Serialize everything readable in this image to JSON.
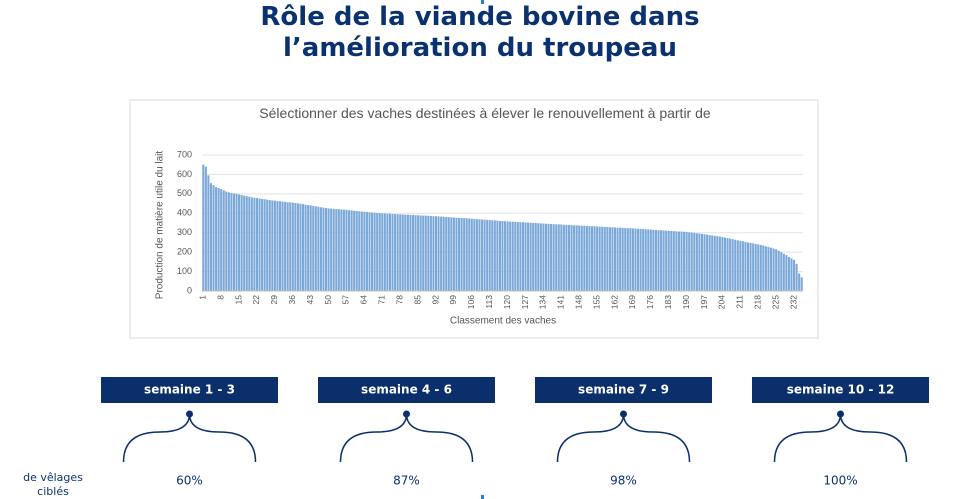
{
  "header": {
    "title": "Rôle de la viande bovine dans l’amélioration du troupeau"
  },
  "chart_data": {
    "type": "bar",
    "title": "Sélectionner des vaches destinées à élever le renouvellement à partir de",
    "x_label": "Classement des vaches",
    "y_label": "Production de matière utile du lait",
    "color": "#7aa8d8",
    "grid": true,
    "ylim": [
      0,
      700
    ],
    "yticks": [
      0,
      100,
      200,
      300,
      400,
      500,
      600,
      700
    ],
    "categories": [
      1,
      null,
      null,
      null,
      null,
      null,
      null,
      8,
      null,
      null,
      null,
      null,
      null,
      null,
      15,
      null,
      null,
      null,
      null,
      null,
      null,
      22,
      null,
      null,
      null,
      null,
      null,
      null,
      29,
      null,
      null,
      null,
      null,
      null,
      null,
      36,
      null,
      null,
      null,
      null,
      null,
      null,
      43,
      null,
      null,
      null,
      null,
      null,
      null,
      50,
      null,
      null,
      null,
      null,
      null,
      null,
      57,
      null,
      null,
      null,
      null,
      null,
      null,
      64,
      null,
      null,
      null,
      null,
      null,
      null,
      71,
      null,
      null,
      null,
      null,
      null,
      null,
      78,
      null,
      null,
      null,
      null,
      null,
      null,
      85,
      null,
      null,
      null,
      null,
      null,
      null,
      92,
      null,
      null,
      null,
      null,
      null,
      null,
      99,
      null,
      null,
      null,
      null,
      null,
      null,
      106,
      null,
      null,
      null,
      null,
      null,
      null,
      113,
      null,
      null,
      null,
      null,
      null,
      null,
      120,
      null,
      null,
      null,
      null,
      null,
      null,
      127,
      null,
      null,
      null,
      null,
      null,
      null,
      134,
      null,
      null,
      null,
      null,
      null,
      null,
      141,
      null,
      null,
      null,
      null,
      null,
      null,
      148,
      null,
      null,
      null,
      null,
      null,
      null,
      155,
      null,
      null,
      null,
      null,
      null,
      null,
      162,
      null,
      null,
      null,
      null,
      null,
      null,
      169,
      null,
      null,
      null,
      null,
      null,
      null,
      176,
      null,
      null,
      null,
      null,
      null,
      null,
      183,
      null,
      null,
      null,
      null,
      null,
      null,
      190,
      null,
      null,
      null,
      null,
      null,
      null,
      197,
      null,
      null,
      null,
      null,
      null,
      null,
      204,
      null,
      null,
      null,
      null,
      null,
      null,
      211,
      null,
      null,
      null,
      null,
      null,
      null,
      218,
      null,
      null,
      null,
      null,
      null,
      null,
      225,
      null,
      null,
      null,
      null,
      null,
      null,
      232,
      null,
      null,
      null
    ],
    "values": [
      650,
      640,
      595,
      555,
      545,
      535,
      530,
      525,
      518,
      512,
      508,
      505,
      502,
      500,
      497,
      494,
      491,
      488,
      485,
      482,
      480,
      478,
      476,
      474,
      472,
      470,
      468,
      466,
      465,
      463,
      462,
      460,
      459,
      457,
      456,
      455,
      453,
      451,
      449,
      447,
      444,
      442,
      440,
      438,
      436,
      434,
      431,
      429,
      427,
      425,
      424,
      423,
      422,
      421,
      420,
      419,
      418,
      416,
      415,
      413,
      412,
      410,
      409,
      408,
      407,
      405,
      404,
      403,
      402,
      401,
      400,
      399,
      398,
      398,
      397,
      396,
      395,
      395,
      394,
      393,
      393,
      392,
      391,
      390,
      390,
      389,
      388,
      388,
      387,
      386,
      385,
      385,
      384,
      383,
      382,
      381,
      380,
      379,
      378,
      377,
      376,
      376,
      375,
      374,
      373,
      372,
      371,
      370,
      369,
      368,
      367,
      366,
      365,
      364,
      363,
      362,
      361,
      360,
      359,
      358,
      357,
      357,
      356,
      355,
      354,
      354,
      353,
      352,
      351,
      350,
      350,
      349,
      348,
      347,
      346,
      346,
      345,
      344,
      343,
      343,
      342,
      341,
      340,
      340,
      339,
      338,
      338,
      337,
      336,
      336,
      335,
      334,
      333,
      333,
      332,
      331,
      331,
      330,
      329,
      328,
      328,
      327,
      326,
      326,
      325,
      324,
      323,
      323,
      322,
      321,
      320,
      320,
      319,
      318,
      317,
      316,
      315,
      314,
      313,
      313,
      312,
      311,
      310,
      309,
      308,
      307,
      306,
      306,
      305,
      304,
      302,
      301,
      299,
      297,
      296,
      294,
      292,
      290,
      288,
      286,
      284,
      282,
      280,
      278,
      275,
      272,
      270,
      267,
      264,
      261,
      258,
      256,
      253,
      250,
      248,
      245,
      242,
      240,
      237,
      234,
      230,
      227,
      223,
      219,
      215,
      208,
      200,
      192,
      185,
      175,
      168,
      160,
      140,
      90,
      70
    ]
  },
  "phases": [
    {
      "label": "semaine 1 - 3",
      "value": "60%"
    },
    {
      "label": "semaine 4 - 6",
      "value": "87%"
    },
    {
      "label": "semaine 7 - 9",
      "value": "98%"
    },
    {
      "label": "semaine 10 - 12",
      "value": "100%"
    }
  ],
  "row_label": "de vêlages ciblés"
}
